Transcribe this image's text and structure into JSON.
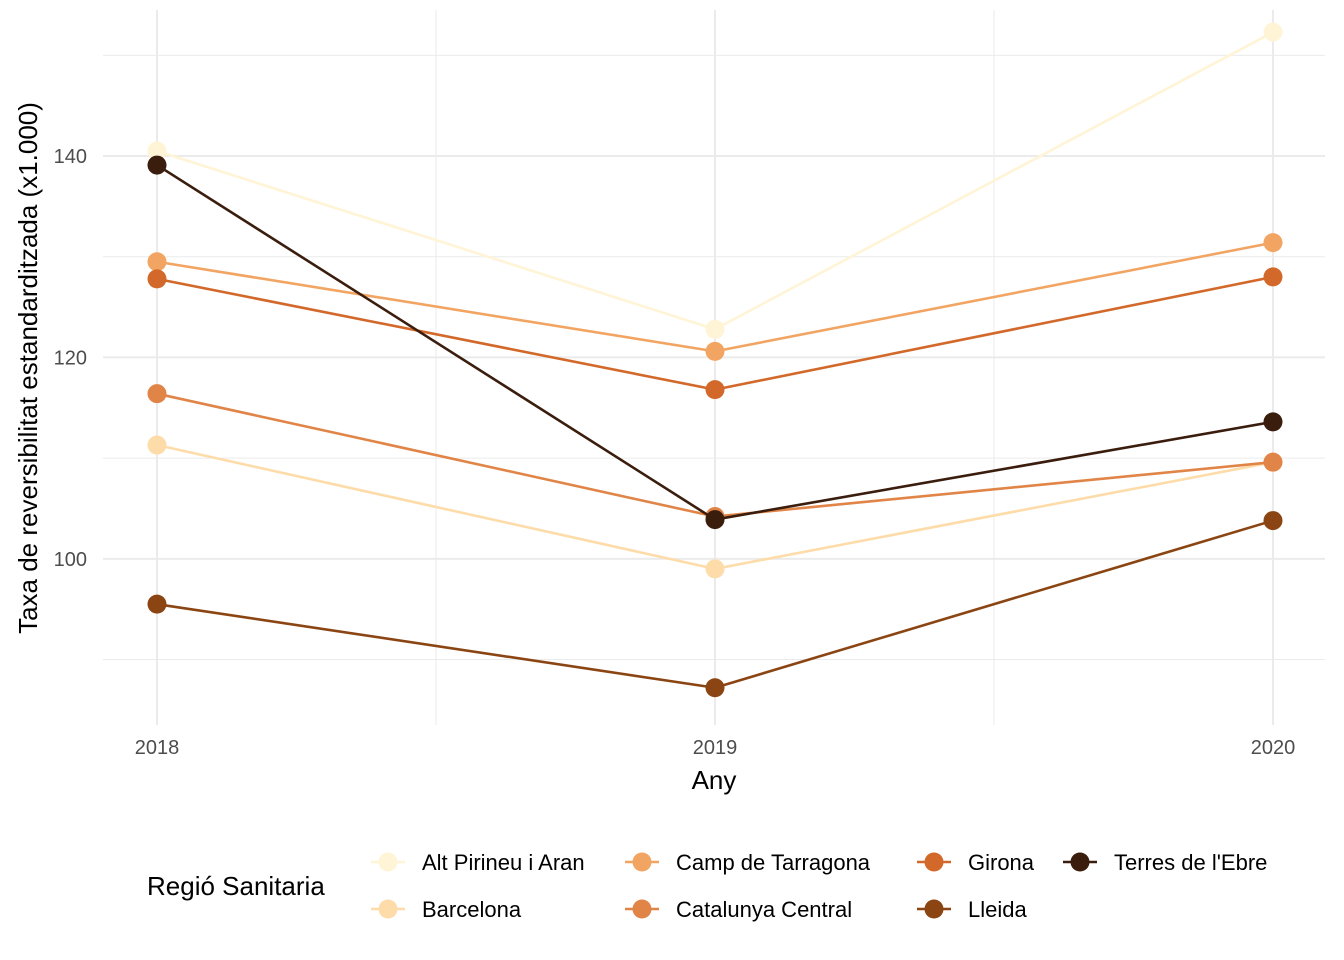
{
  "chart_data": {
    "type": "line",
    "title": "",
    "xlabel": "Any",
    "ylabel": "Taxa de reversibilitat estandarditzada (x1.000)",
    "x": [
      "2018",
      "2019",
      "2020"
    ],
    "ylim": [
      83.5,
      154.5
    ],
    "yticks": [
      100,
      120,
      140
    ],
    "ytick_labels": [
      "100",
      "120",
      "140"
    ],
    "grid": true,
    "legend": {
      "title": "Regió Sanitaria",
      "position": "bottom"
    },
    "series": [
      {
        "name": "Alt Pirineu i Aran",
        "color": "#FFF4D6",
        "values": [
          140.5,
          122.8,
          152.3
        ]
      },
      {
        "name": "Barcelona",
        "color": "#FDDCAA",
        "values": [
          111.3,
          99.0,
          109.6
        ]
      },
      {
        "name": "Camp de Tarragona",
        "color": "#F2A563",
        "values": [
          129.5,
          120.6,
          131.4
        ]
      },
      {
        "name": "Catalunya Central",
        "color": "#E08547",
        "values": [
          116.4,
          104.2,
          109.6
        ]
      },
      {
        "name": "Girona",
        "color": "#D2682A",
        "values": [
          127.8,
          116.8,
          128.0
        ]
      },
      {
        "name": "Lleida",
        "color": "#8B4513",
        "values": [
          95.5,
          87.2,
          103.8
        ]
      },
      {
        "name": "Terres de l'Ebre",
        "color": "#3A1D0D",
        "values": [
          139.1,
          103.9,
          113.6
        ]
      }
    ]
  }
}
